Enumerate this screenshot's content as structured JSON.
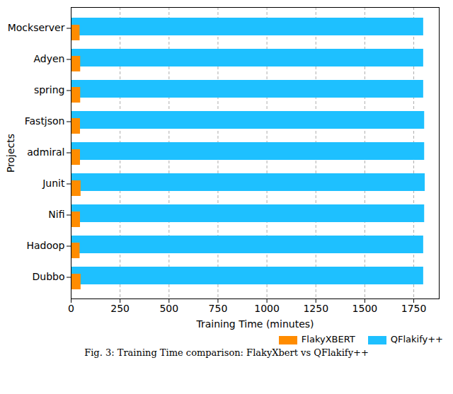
{
  "chart_data": {
    "type": "bar",
    "orientation": "horizontal",
    "title": "Fig. 3: Training Time comparison: FlakyXbert vs QFlakify++",
    "x_label": "Training Time (minutes)",
    "y_label": "Projects",
    "categories": [
      "Mockserver",
      "Adyen",
      "spring",
      "Fastjson",
      "admiral",
      "Junit",
      "Nifi",
      "Hadoop",
      "Dubbo"
    ],
    "series": [
      {
        "name": "FlakyXBERT",
        "color": "#ff8c00",
        "values": [
          45,
          48,
          48,
          47,
          47,
          50,
          47,
          45,
          50
        ]
      },
      {
        "name": "QFlakify++",
        "color": "#1ec0ff",
        "values": [
          1800,
          1800,
          1800,
          1805,
          1805,
          1808,
          1805,
          1800,
          1800
        ]
      }
    ],
    "xlim": [
      0,
      1880
    ],
    "xticks": [
      0,
      250,
      500,
      750,
      1000,
      1250,
      1500,
      1750
    ],
    "grid": true,
    "legend": "lower right"
  }
}
